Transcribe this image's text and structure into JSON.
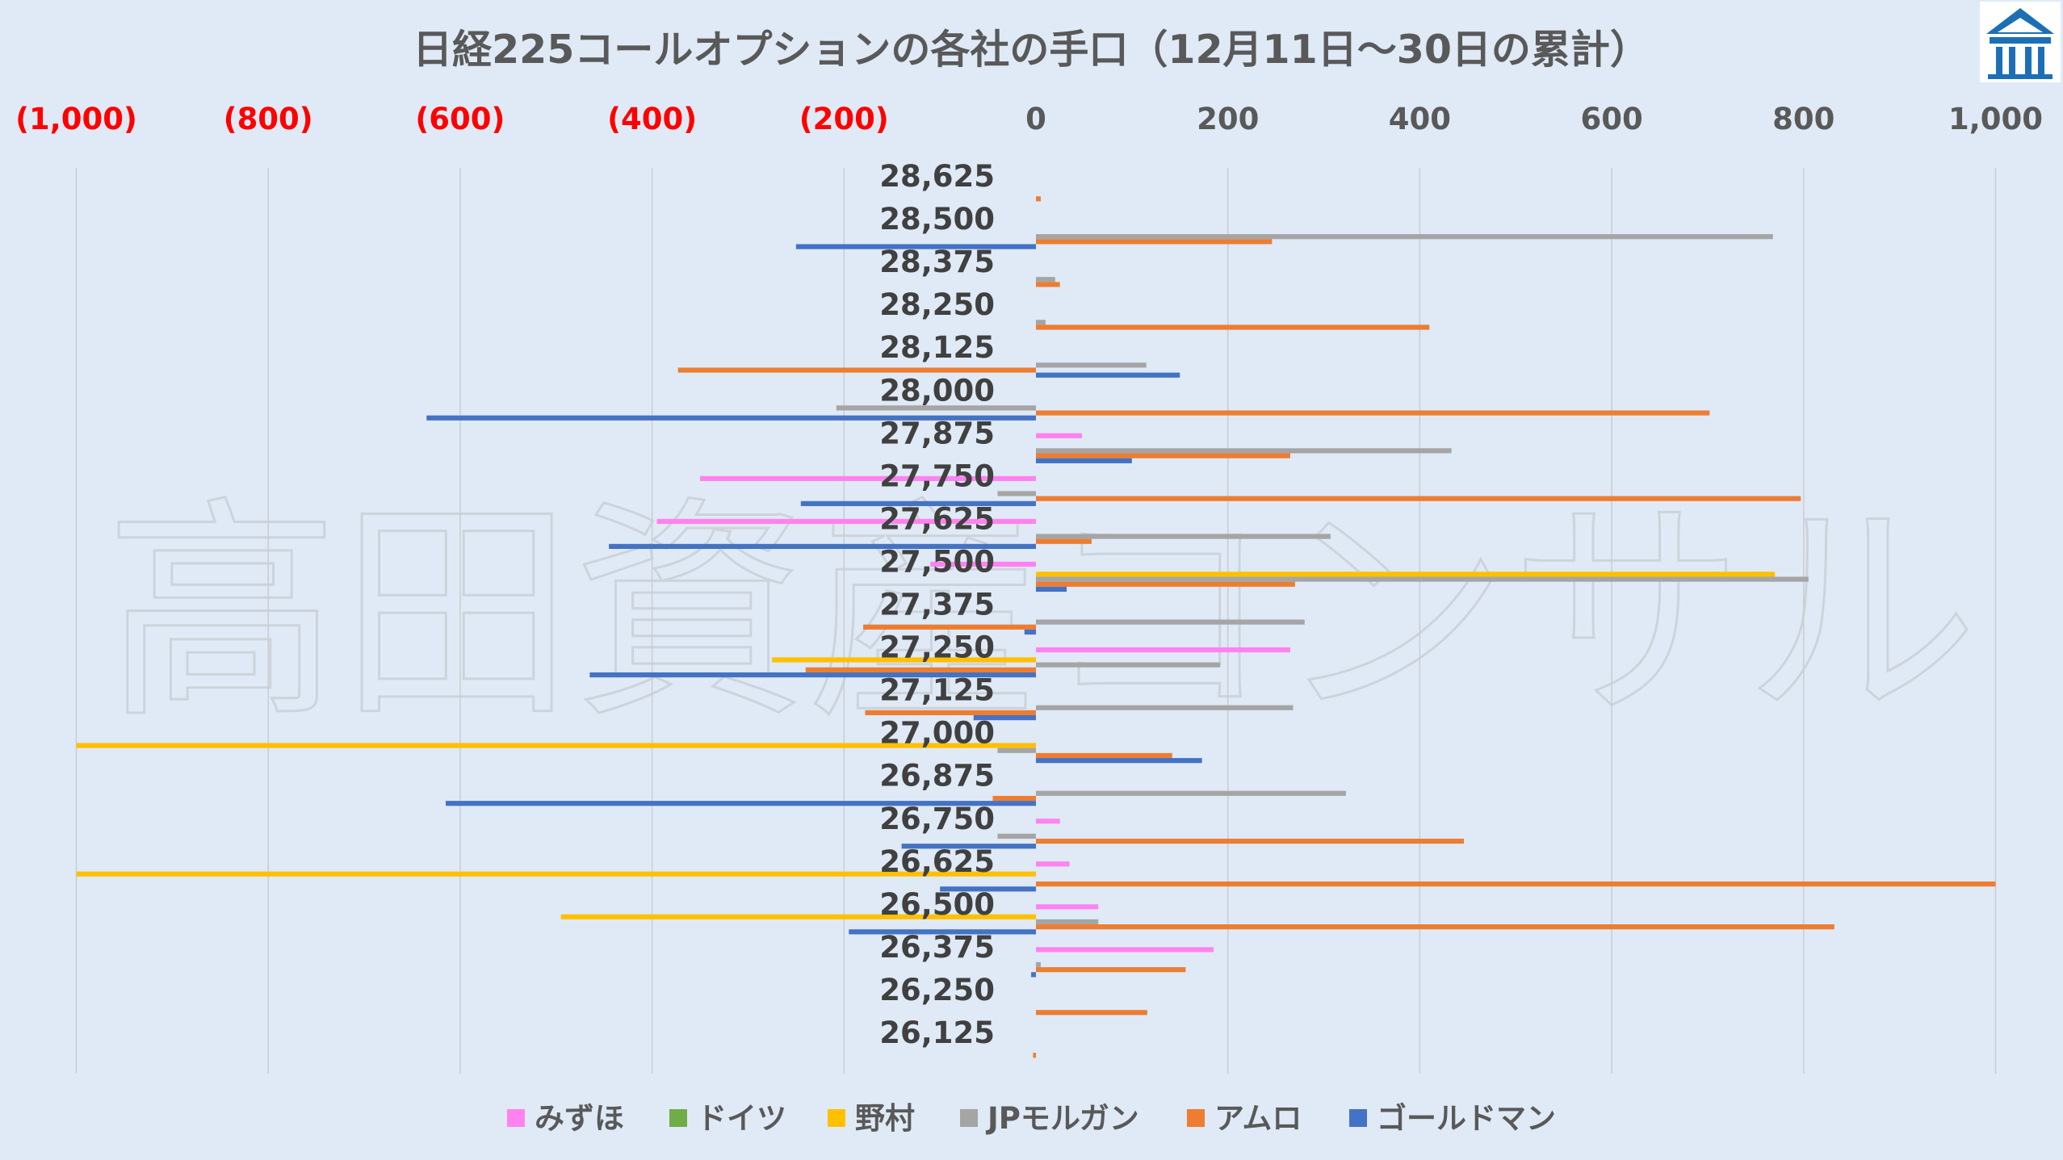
{
  "chart_data": {
    "type": "bar",
    "orientation": "horizontal",
    "title": "日経225コールオプションの各社の手口（12月11日～30日の累計）",
    "xlim": [
      -1000,
      1000
    ],
    "x_ticks": [
      {
        "value": -1000,
        "label": "(1,000)"
      },
      {
        "value": -800,
        "label": "(800)"
      },
      {
        "value": -600,
        "label": "(600)"
      },
      {
        "value": -400,
        "label": "(400)"
      },
      {
        "value": -200,
        "label": "(200)"
      },
      {
        "value": 0,
        "label": "0"
      },
      {
        "value": 200,
        "label": "200"
      },
      {
        "value": 400,
        "label": "400"
      },
      {
        "value": 600,
        "label": "600"
      },
      {
        "value": 800,
        "label": "800"
      },
      {
        "value": 1000,
        "label": "1,000"
      }
    ],
    "grid": true,
    "legend_position": "bottom",
    "categories": [
      "28,625",
      "28,500",
      "28,375",
      "28,250",
      "28,125",
      "28,000",
      "27,875",
      "27,750",
      "27,625",
      "27,500",
      "27,375",
      "27,250",
      "27,125",
      "27,000",
      "26,875",
      "26,750",
      "26,625",
      "26,500",
      "26,375",
      "26,250",
      "26,125"
    ],
    "series": [
      {
        "name": "みずほ",
        "color": "#ff82f0",
        "values": [
          0,
          0,
          0,
          0,
          0,
          0,
          48,
          -350,
          -395,
          -110,
          0,
          265,
          0,
          0,
          0,
          25,
          35,
          65,
          185,
          0,
          0
        ]
      },
      {
        "name": "ドイツ",
        "color": "#70ad47",
        "values": [
          0,
          0,
          0,
          0,
          0,
          0,
          0,
          0,
          0,
          0,
          0,
          0,
          0,
          0,
          0,
          0,
          0,
          0,
          0,
          0,
          0
        ]
      },
      {
        "name": "野村",
        "color": "#ffc000",
        "values": [
          0,
          0,
          0,
          0,
          0,
          0,
          0,
          0,
          0,
          770,
          0,
          -275,
          0,
          -1000,
          0,
          0,
          -1000,
          -495,
          0,
          0,
          0
        ]
      },
      {
        "name": "JPモルガン",
        "color": "#a5a5a5",
        "values": [
          0,
          768,
          20,
          10,
          115,
          -208,
          433,
          -40,
          307,
          805,
          280,
          192,
          268,
          -40,
          323,
          -40,
          0,
          65,
          5,
          0,
          0
        ]
      },
      {
        "name": "アムロ",
        "color": "#ed7d31",
        "values": [
          5,
          246,
          25,
          410,
          -373,
          702,
          265,
          797,
          58,
          270,
          -180,
          -240,
          -178,
          142,
          -45,
          446,
          1000,
          832,
          156,
          116,
          -3
        ]
      },
      {
        "name": "ゴールドマン",
        "color": "#4472c4",
        "values": [
          0,
          -250,
          0,
          0,
          150,
          -635,
          100,
          -245,
          -445,
          32,
          -12,
          -465,
          -65,
          173,
          -615,
          -140,
          -100,
          -195,
          -5,
          0,
          0
        ]
      }
    ],
    "watermark": "高田資産コンサル"
  }
}
